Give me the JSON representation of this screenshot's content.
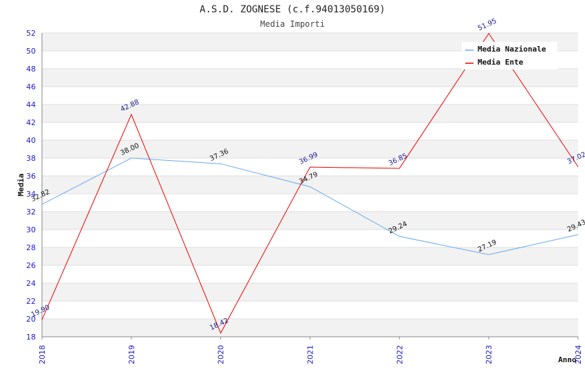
{
  "chart_data": {
    "type": "line",
    "title": "A.S.D. ZOGNESE (c.f.94013050169)",
    "subtitle": "Media Importi",
    "xlabel": "Anno",
    "ylabel": "Media",
    "x": [
      "2018",
      "2019",
      "2020",
      "2021",
      "2022",
      "2023",
      "2024"
    ],
    "ylim": [
      18,
      52
    ],
    "yticks": [
      "18",
      "20",
      "22",
      "24",
      "26",
      "28",
      "30",
      "32",
      "34",
      "36",
      "38",
      "40",
      "42",
      "44",
      "46",
      "48",
      "50",
      "52"
    ],
    "grid": true,
    "legend_position": "top-right",
    "series": [
      {
        "name": "Media Nazionale",
        "color": "#66aaee",
        "values": [
          32.82,
          38.0,
          37.36,
          34.79,
          29.24,
          27.19,
          29.43
        ],
        "labels": [
          "32.82",
          "38.00",
          "37.36",
          "34.79",
          "29.24",
          "27.19",
          "29.43"
        ]
      },
      {
        "name": "Media Ente",
        "color": "#ee0000",
        "values": [
          19.9,
          42.88,
          18.42,
          36.99,
          36.85,
          51.95,
          37.02
        ],
        "labels": [
          "19.90",
          "42.88",
          "18.42",
          "36.99",
          "36.85",
          "51.95",
          "37.02"
        ]
      }
    ]
  }
}
